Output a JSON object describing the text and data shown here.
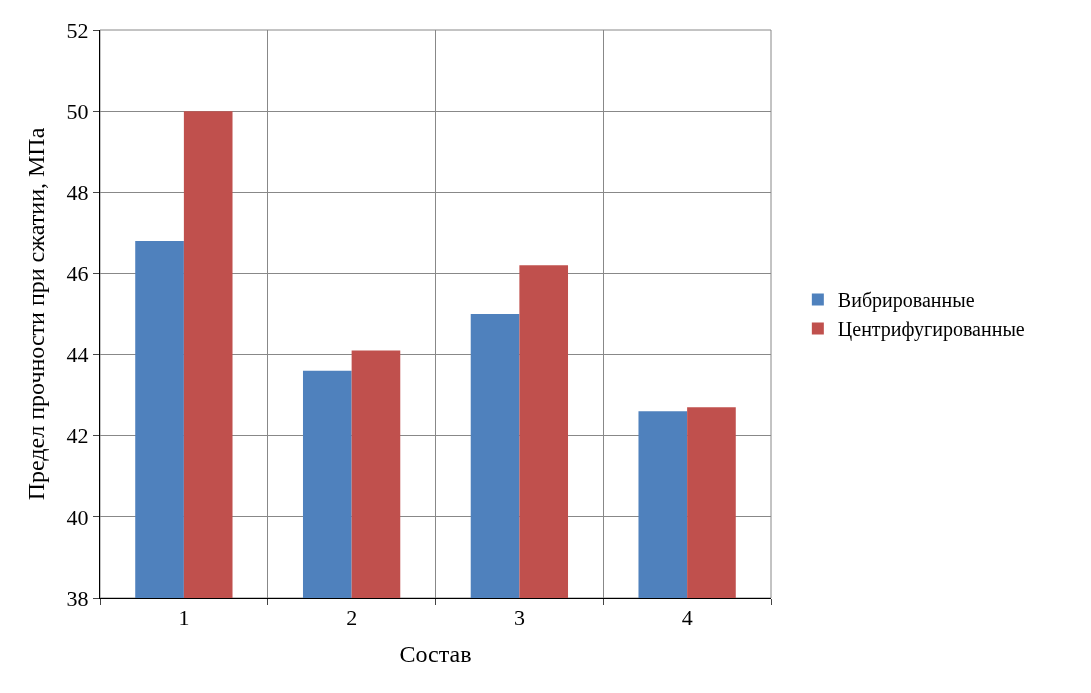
{
  "chart_data": {
    "type": "bar",
    "xlabel": "Состав",
    "ylabel": "Предел прочности при сжатии, МПа",
    "categories": [
      "1",
      "2",
      "3",
      "4"
    ],
    "series": [
      {
        "name": "Вибрированные",
        "color": "#4f81bd",
        "values": [
          46.8,
          43.6,
          45.0,
          42.6
        ]
      },
      {
        "name": "Центрифугированные",
        "color": "#c0504d",
        "values": [
          50.0,
          44.1,
          46.2,
          42.7
        ]
      }
    ],
    "ylim": [
      38,
      52
    ],
    "yticks": [
      38,
      40,
      42,
      44,
      46,
      48,
      50,
      52
    ],
    "grid": true,
    "legend": "right"
  }
}
